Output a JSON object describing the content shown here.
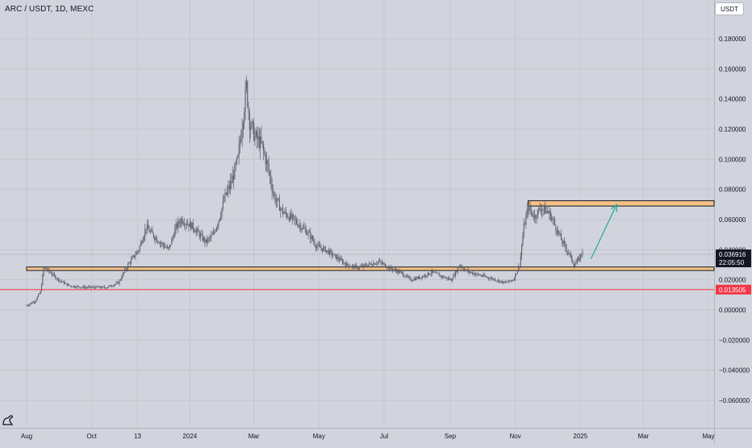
{
  "header": {
    "title": "ARC / USDT, 1D, MEXC",
    "currency_button": "USDT"
  },
  "logo": {
    "icon": "tradingview-logo-icon"
  },
  "chart_data": {
    "type": "candlestick",
    "title": "ARC / USDT, 1D, MEXC",
    "ylim": [
      -0.065,
      0.19
    ],
    "y_ticks": [
      0.18,
      0.16,
      0.14,
      0.12,
      0.1,
      0.08,
      0.06,
      0.04,
      0.02,
      0.0,
      -0.02,
      -0.04,
      -0.06
    ],
    "y_tick_labels": [
      "0.180000",
      "0.160000",
      "0.140000",
      "0.120000",
      "0.100000",
      "0.080000",
      "0.060000",
      "0.040000",
      "0.020000",
      "0.000000",
      "−0.020000",
      "−0.040000",
      "−0.060000"
    ],
    "x_tick_labels": [
      "Aug",
      "Oct",
      "13",
      "2024",
      "Mar",
      "May",
      "Jul",
      "Sep",
      "Nov",
      "2025",
      "Mar",
      "May"
    ],
    "x_tick_days": [
      0,
      61,
      104,
      153,
      213,
      274,
      335,
      397,
      458,
      519,
      578,
      639
    ],
    "grid": true,
    "price_path": [
      [
        0,
        0.003
      ],
      [
        8,
        0.006
      ],
      [
        13,
        0.012
      ],
      [
        16,
        0.028
      ],
      [
        22,
        0.025
      ],
      [
        30,
        0.02
      ],
      [
        40,
        0.016
      ],
      [
        55,
        0.015
      ],
      [
        75,
        0.015
      ],
      [
        86,
        0.018
      ],
      [
        95,
        0.03
      ],
      [
        105,
        0.04
      ],
      [
        112,
        0.055
      ],
      [
        118,
        0.05
      ],
      [
        125,
        0.045
      ],
      [
        133,
        0.04
      ],
      [
        140,
        0.055
      ],
      [
        145,
        0.06
      ],
      [
        150,
        0.058
      ],
      [
        156,
        0.055
      ],
      [
        162,
        0.05
      ],
      [
        168,
        0.045
      ],
      [
        175,
        0.05
      ],
      [
        180,
        0.06
      ],
      [
        186,
        0.075
      ],
      [
        192,
        0.085
      ],
      [
        198,
        0.1
      ],
      [
        203,
        0.13
      ],
      [
        206,
        0.148
      ],
      [
        209,
        0.125
      ],
      [
        214,
        0.115
      ],
      [
        220,
        0.11
      ],
      [
        226,
        0.095
      ],
      [
        232,
        0.075
      ],
      [
        240,
        0.065
      ],
      [
        250,
        0.06
      ],
      [
        258,
        0.055
      ],
      [
        265,
        0.05
      ],
      [
        272,
        0.042
      ],
      [
        280,
        0.04
      ],
      [
        290,
        0.035
      ],
      [
        300,
        0.03
      ],
      [
        310,
        0.028
      ],
      [
        320,
        0.03
      ],
      [
        330,
        0.032
      ],
      [
        340,
        0.028
      ],
      [
        350,
        0.025
      ],
      [
        360,
        0.02
      ],
      [
        370,
        0.022
      ],
      [
        380,
        0.025
      ],
      [
        390,
        0.022
      ],
      [
        398,
        0.02
      ],
      [
        406,
        0.03
      ],
      [
        412,
        0.026
      ],
      [
        420,
        0.024
      ],
      [
        430,
        0.022
      ],
      [
        440,
        0.02
      ],
      [
        448,
        0.018
      ],
      [
        456,
        0.02
      ],
      [
        462,
        0.03
      ],
      [
        466,
        0.055
      ],
      [
        470,
        0.068
      ],
      [
        476,
        0.062
      ],
      [
        482,
        0.068
      ],
      [
        490,
        0.064
      ],
      [
        496,
        0.055
      ],
      [
        502,
        0.045
      ],
      [
        508,
        0.038
      ],
      [
        513,
        0.03
      ],
      [
        518,
        0.034
      ],
      [
        521,
        0.04
      ]
    ],
    "series": [
      {
        "name": "",
        "color": "#5d606b",
        "role": "price"
      }
    ],
    "annotations": {
      "support_zone": {
        "y_low": 0.0262,
        "y_high": 0.0285,
        "day_start": 0,
        "day_end": 669,
        "fill": "#f5c186",
        "stroke": "#131722"
      },
      "resistance_zone": {
        "y_low": 0.069,
        "y_high": 0.0725,
        "day_start": 470,
        "day_end": 669,
        "fill": "#f5c186",
        "stroke": "#131722"
      },
      "red_line": {
        "y": 0.013505,
        "color": "#f23645",
        "label": "0.013505"
      },
      "current_price": {
        "y": 0.036916,
        "label": "0.036916",
        "countdown": "22:05:50",
        "color": "#131722"
      },
      "arrow": {
        "from": [
          529,
          0.034
        ],
        "to": [
          553,
          0.07
        ],
        "color": "#22ab94"
      }
    },
    "colors": {
      "background": "#d1d4dc",
      "grid": "#c4c7cf",
      "candle": "#5d606b"
    }
  }
}
